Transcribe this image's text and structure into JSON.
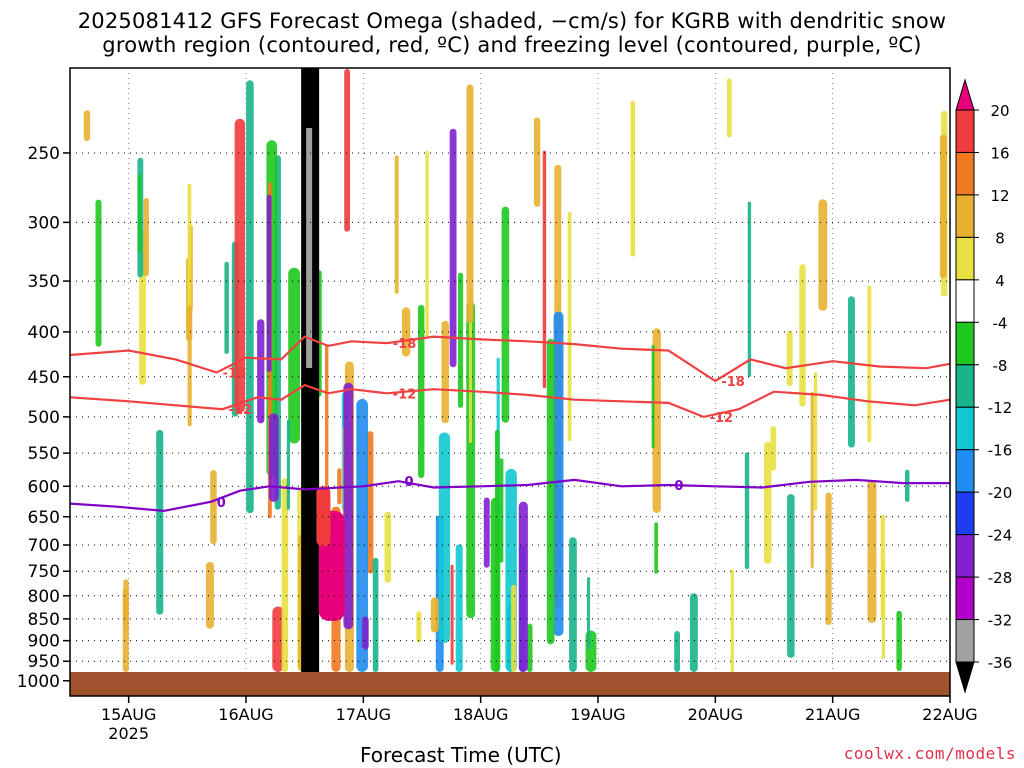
{
  "title_line1": "2025081412 GFS Forecast Omega (shaded, −cm/s) for KGRB with dendritic snow",
  "title_line2": "growth region (contoured, red, ºC) and freezing level (contoured, purple, ºC)",
  "credit": "coolwx.com/models",
  "chart_data": {
    "type": "heatmap",
    "xlabel": "Forecast Time (UTC)",
    "ylabel": "",
    "x_ticks": [
      "15AUG",
      "16AUG",
      "17AUG",
      "18AUG",
      "19AUG",
      "20AUG",
      "21AUG",
      "22AUG"
    ],
    "x_tick_sub": "2025",
    "xlim_days": [
      14.5,
      22.0
    ],
    "y_ticks": [
      250,
      300,
      350,
      400,
      450,
      500,
      550,
      600,
      650,
      700,
      750,
      800,
      850,
      900,
      950,
      1000
    ],
    "ylim_hPa": [
      200,
      1000
    ],
    "grid": true,
    "colorbar": {
      "labels": [
        20,
        16,
        12,
        8,
        4,
        -4,
        -8,
        -12,
        -16,
        -20,
        -24,
        -28,
        -32,
        -36
      ],
      "colors": [
        "#e8007a",
        "#f03c3c",
        "#f07a20",
        "#e8b030",
        "#e8e040",
        "#ffffff",
        "#1ec81e",
        "#18b48a",
        "#12c8d0",
        "#1e8cf0",
        "#1e3cf0",
        "#8020d0",
        "#b000c8",
        "#a0a0a0",
        "#000000"
      ]
    },
    "contours": [
      {
        "label": "-18",
        "color": "#f04040",
        "points": [
          [
            14.5,
            425
          ],
          [
            15.0,
            420
          ],
          [
            15.4,
            430
          ],
          [
            15.75,
            445
          ],
          [
            16.0,
            428
          ],
          [
            16.3,
            430
          ],
          [
            16.5,
            405
          ],
          [
            16.7,
            415
          ],
          [
            16.9,
            410
          ],
          [
            17.2,
            412
          ],
          [
            17.6,
            405
          ],
          [
            18.0,
            408
          ],
          [
            18.4,
            410
          ],
          [
            18.8,
            413
          ],
          [
            19.2,
            418
          ],
          [
            19.6,
            420
          ],
          [
            20.0,
            455
          ],
          [
            20.3,
            430
          ],
          [
            20.6,
            440
          ],
          [
            21.0,
            432
          ],
          [
            21.4,
            438
          ],
          [
            21.8,
            440
          ],
          [
            22.0,
            435
          ]
        ]
      },
      {
        "label": "-12",
        "color": "#f04040",
        "points": [
          [
            14.5,
            475
          ],
          [
            15.0,
            480
          ],
          [
            15.4,
            485
          ],
          [
            15.8,
            490
          ],
          [
            16.1,
            475
          ],
          [
            16.3,
            478
          ],
          [
            16.5,
            460
          ],
          [
            16.7,
            470
          ],
          [
            16.9,
            465
          ],
          [
            17.2,
            470
          ],
          [
            17.6,
            465
          ],
          [
            18.0,
            468
          ],
          [
            18.4,
            472
          ],
          [
            18.8,
            478
          ],
          [
            19.2,
            480
          ],
          [
            19.6,
            482
          ],
          [
            19.9,
            500
          ],
          [
            20.2,
            490
          ],
          [
            20.5,
            468
          ],
          [
            20.9,
            472
          ],
          [
            21.3,
            480
          ],
          [
            21.7,
            485
          ],
          [
            22.0,
            478
          ]
        ]
      },
      {
        "label": "0",
        "color": "#8000c8",
        "points": [
          [
            14.5,
            628
          ],
          [
            14.9,
            633
          ],
          [
            15.3,
            640
          ],
          [
            15.7,
            625
          ],
          [
            15.95,
            607
          ],
          [
            16.2,
            600
          ],
          [
            16.5,
            605
          ],
          [
            16.7,
            603
          ],
          [
            17.0,
            600
          ],
          [
            17.3,
            592
          ],
          [
            17.6,
            602
          ],
          [
            18.0,
            600
          ],
          [
            18.4,
            598
          ],
          [
            18.8,
            590
          ],
          [
            19.2,
            600
          ],
          [
            19.6,
            598
          ],
          [
            20.0,
            600
          ],
          [
            20.4,
            602
          ],
          [
            20.8,
            593
          ],
          [
            21.2,
            590
          ],
          [
            21.6,
            595
          ],
          [
            22.0,
            595
          ]
        ]
      }
    ]
  },
  "colorbar_numbers": [
    "20",
    "16",
    "12",
    "8",
    "4",
    "-4",
    "-8",
    "-12",
    "-16",
    "-20",
    "-24",
    "-28",
    "-32",
    "-36"
  ]
}
